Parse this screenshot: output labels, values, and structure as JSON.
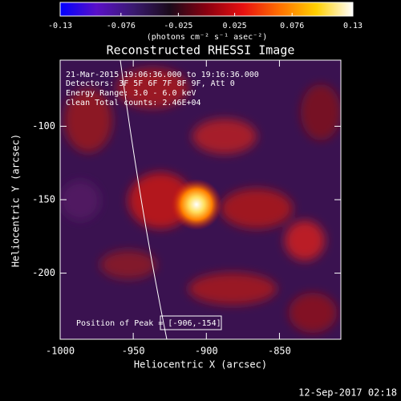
{
  "chart_data": {
    "type": "image",
    "title": "Reconstructed RHESSI Image",
    "colorbar": {
      "label": "(photons cm⁻² s⁻¹ asec⁻²)",
      "lim": [
        -0.13,
        0.13
      ],
      "ticks": [
        -0.13,
        -0.076,
        -0.025,
        0.025,
        0.076,
        0.13
      ],
      "colormap": [
        "#0000ff",
        "#5a10c8",
        "#3a1a70",
        "#1a0a1a",
        "#8a0010",
        "#e81010",
        "#ff7000",
        "#ffd000",
        "#ffffff"
      ]
    },
    "xlabel": "Heliocentric X (arcsec)",
    "ylabel": "Heliocentric Y (arcsec)",
    "xlim": [
      -1000,
      -808
    ],
    "ylim": [
      -245,
      -55
    ],
    "xticks": [
      -1000,
      -950,
      -900,
      -850
    ],
    "yticks": [
      -100,
      -150,
      -200
    ],
    "annotations": [
      "21-Mar-2015 19:06:36.000 to 19:16:36.000",
      "Detectors: 3F 5F 6F 7F 8F 9F, Att 0",
      "Energy Range: 3.0 - 6.0 keV",
      "Clean    Total counts: 2.46E+04"
    ],
    "peak_label": "Position of Peak = [-906,-154]",
    "timestamp": "12-Sep-2017 02:18"
  }
}
